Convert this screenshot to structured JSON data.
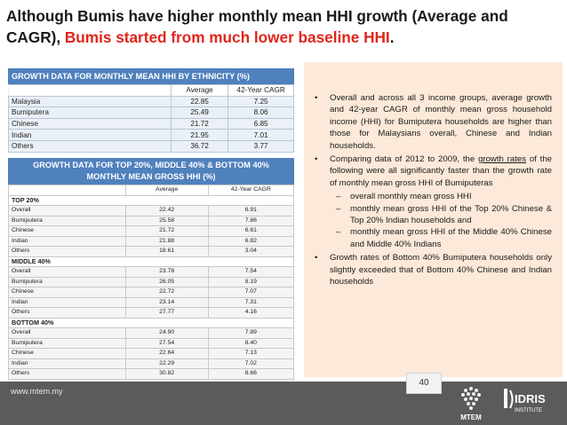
{
  "title": {
    "part1": "Although Bumis have higher monthly mean HHI growth (Average and CAGR), ",
    "part2": "Bumis started from much lower baseline HHI",
    "part3": "."
  },
  "table1": {
    "header": "GROWTH DATA FOR MONTHLY MEAN HHI BY ETHNICITY (%)",
    "col_average": "Average",
    "col_cagr": "42-Year CAGR",
    "rows": [
      {
        "label": "Malaysia",
        "avg": "22.85",
        "cagr": "7.25"
      },
      {
        "label": "Bumiputera",
        "avg": "25.49",
        "cagr": "8.06"
      },
      {
        "label": "Chinese",
        "avg": "21.72",
        "cagr": "6.85"
      },
      {
        "label": "Indian",
        "avg": "21.95",
        "cagr": "7.01"
      },
      {
        "label": "Others",
        "avg": "36.72",
        "cagr": "3.77"
      }
    ]
  },
  "table2": {
    "header_line1": "GROWTH DATA FOR TOP 20%, MIDDLE 40% & BOTTOM 40%",
    "header_line2": "MONTHLY MEAN GROSS HHI (%)",
    "col_average": "Average",
    "col_cagr": "42-Year CAGR",
    "sections": [
      {
        "name": "TOP 20%",
        "rows": [
          {
            "label": "Overall",
            "avg": "22.42",
            "cagr": "6.91"
          },
          {
            "label": "Bumiputera",
            "avg": "25.58",
            "cagr": "7.86"
          },
          {
            "label": "Chinese",
            "avg": "21.72",
            "cagr": "6.61"
          },
          {
            "label": "Indian",
            "avg": "21.88",
            "cagr": "6.82"
          },
          {
            "label": "Others",
            "avg": "18.61",
            "cagr": "3.04"
          }
        ]
      },
      {
        "name": "MIDDLE 40%",
        "rows": [
          {
            "label": "Overall",
            "avg": "23.78",
            "cagr": "7.54"
          },
          {
            "label": "Bumiputera",
            "avg": "26.05",
            "cagr": "8.19"
          },
          {
            "label": "Chinese",
            "avg": "22.72",
            "cagr": "7.07"
          },
          {
            "label": "Indian",
            "avg": "23.14",
            "cagr": "7.31"
          },
          {
            "label": "Others",
            "avg": "27.77",
            "cagr": "4.16"
          }
        ]
      },
      {
        "name": "BOTTOM 40%",
        "rows": [
          {
            "label": "Overall",
            "avg": "24.90",
            "cagr": "7.89"
          },
          {
            "label": "Bumiputera",
            "avg": "27.54",
            "cagr": "8.40"
          },
          {
            "label": "Chinese",
            "avg": "22.64",
            "cagr": "7.13"
          },
          {
            "label": "Indian",
            "avg": "22.29",
            "cagr": "7.02"
          },
          {
            "label": "Others",
            "avg": "30.82",
            "cagr": "8.66"
          }
        ]
      }
    ]
  },
  "panel": {
    "bullet1": "Overall and across all 3 income groups, average growth and 42-year CAGR of monthly mean gross household income (HHI) for Bumiputera households are higher than those for Malaysians overall, Chinese and Indian households.",
    "bullet2_prefix": "Comparing data of 2012 to 2009, the ",
    "bullet2_underlined": "growth rates",
    "bullet2_suffix": " of the following were all significantly faster than the growth rate of monthly mean gross HHI of Bumiputeras",
    "sub1": "overall monthly mean gross HHI",
    "sub2": "monthly mean gross HHI of the Top 20% Chinese & Top 20% Indian households and",
    "sub3": "monthly mean gross HHI of the Middle 40% Chinese and Middle 40% Indians",
    "bullet3": "Growth rates of Bottom 40% Bumiputera households only slightly exceeded that of Bottom 40% Chinese and Indian households"
  },
  "footer": {
    "url": "www.mtem.my",
    "page_number": "40",
    "logo1_text": "MTEM",
    "logo2_text": "IDRIS",
    "logo2_sub": "INSTITUTE"
  },
  "colors": {
    "accent_red": "#e0261b",
    "table_header_blue": "#4f81bd",
    "panel_bg": "#fce9d9",
    "footer_bg": "#5b5b5b"
  }
}
